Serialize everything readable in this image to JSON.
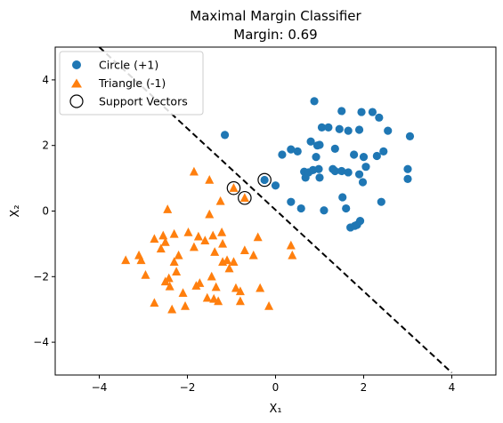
{
  "chart_data": {
    "type": "scatter",
    "title": "Maximal Margin Classifier",
    "subtitle": "Margin: 0.69",
    "xlabel": "X₁",
    "ylabel": "X₂",
    "xlim": [
      -5,
      5
    ],
    "ylim": [
      -5,
      5
    ],
    "xticks": [
      -4,
      -2,
      0,
      2,
      4
    ],
    "yticks": [
      -4,
      -2,
      0,
      2,
      4
    ],
    "grid": false,
    "legend": "top-left",
    "series": [
      {
        "name": "Circle (+1)",
        "marker": "circle",
        "color": "#1f77b4",
        "points": [
          [
            -1.15,
            2.32
          ],
          [
            -0.25,
            0.95
          ],
          [
            0.0,
            0.78
          ],
          [
            0.15,
            1.72
          ],
          [
            0.35,
            1.88
          ],
          [
            0.35,
            0.28
          ],
          [
            0.5,
            1.82
          ],
          [
            0.58,
            0.08
          ],
          [
            0.65,
            1.2
          ],
          [
            0.68,
            1.02
          ],
          [
            0.75,
            1.18
          ],
          [
            0.8,
            2.12
          ],
          [
            0.85,
            1.25
          ],
          [
            0.88,
            3.35
          ],
          [
            0.92,
            1.65
          ],
          [
            0.95,
            2.0
          ],
          [
            0.98,
            1.28
          ],
          [
            1.0,
            2.02
          ],
          [
            1.0,
            1.02
          ],
          [
            1.05,
            2.55
          ],
          [
            1.1,
            0.02
          ],
          [
            1.2,
            2.55
          ],
          [
            1.3,
            1.28
          ],
          [
            1.35,
            1.22
          ],
          [
            1.35,
            1.9
          ],
          [
            1.45,
            2.5
          ],
          [
            1.5,
            3.05
          ],
          [
            1.5,
            1.22
          ],
          [
            1.52,
            0.42
          ],
          [
            1.6,
            0.08
          ],
          [
            1.65,
            1.18
          ],
          [
            1.65,
            2.45
          ],
          [
            1.7,
            -0.5
          ],
          [
            1.78,
            1.72
          ],
          [
            1.8,
            -0.45
          ],
          [
            1.85,
            -0.42
          ],
          [
            1.9,
            2.48
          ],
          [
            1.9,
            1.12
          ],
          [
            1.92,
            -0.3
          ],
          [
            1.95,
            3.02
          ],
          [
            1.98,
            0.88
          ],
          [
            2.05,
            1.35
          ],
          [
            2.0,
            1.65
          ],
          [
            2.2,
            3.02
          ],
          [
            2.3,
            1.68
          ],
          [
            2.35,
            2.85
          ],
          [
            2.4,
            0.28
          ],
          [
            2.45,
            1.82
          ],
          [
            2.55,
            2.45
          ],
          [
            3.0,
            1.28
          ],
          [
            3.0,
            0.98
          ],
          [
            3.05,
            2.28
          ]
        ]
      },
      {
        "name": "Triangle (-1)",
        "marker": "triangle",
        "color": "#ff7f0e",
        "points": [
          [
            -3.4,
            -1.5
          ],
          [
            -3.1,
            -1.35
          ],
          [
            -3.05,
            -1.5
          ],
          [
            -2.95,
            -1.95
          ],
          [
            -2.75,
            -0.85
          ],
          [
            -2.75,
            -2.8
          ],
          [
            -2.6,
            -1.15
          ],
          [
            -2.55,
            -0.75
          ],
          [
            -2.5,
            -0.95
          ],
          [
            -2.5,
            -2.15
          ],
          [
            -2.45,
            0.05
          ],
          [
            -2.42,
            -2.05
          ],
          [
            -2.4,
            -2.3
          ],
          [
            -2.35,
            -3.0
          ],
          [
            -2.3,
            -0.7
          ],
          [
            -2.3,
            -1.55
          ],
          [
            -2.25,
            -1.85
          ],
          [
            -2.2,
            -1.35
          ],
          [
            -2.1,
            -2.5
          ],
          [
            -2.05,
            -2.9
          ],
          [
            -1.98,
            -0.65
          ],
          [
            -1.85,
            1.2
          ],
          [
            -1.85,
            -1.1
          ],
          [
            -1.8,
            -2.28
          ],
          [
            -1.75,
            -0.78
          ],
          [
            -1.72,
            -2.2
          ],
          [
            -1.6,
            -0.9
          ],
          [
            -1.55,
            -2.65
          ],
          [
            -1.5,
            0.95
          ],
          [
            -1.5,
            -0.1
          ],
          [
            -1.45,
            -2.0
          ],
          [
            -1.42,
            -0.75
          ],
          [
            -1.4,
            -2.68
          ],
          [
            -1.38,
            -1.25
          ],
          [
            -1.35,
            -2.32
          ],
          [
            -1.3,
            -2.75
          ],
          [
            -1.25,
            0.3
          ],
          [
            -1.22,
            -0.65
          ],
          [
            -1.2,
            -1.0
          ],
          [
            -1.2,
            -1.55
          ],
          [
            -1.1,
            -1.5
          ],
          [
            -1.05,
            -1.75
          ],
          [
            -0.95,
            -1.55
          ],
          [
            -0.9,
            -2.35
          ],
          [
            -0.8,
            -2.75
          ],
          [
            -0.8,
            -2.45
          ],
          [
            -0.7,
            -1.2
          ],
          [
            -0.5,
            -1.35
          ],
          [
            -0.4,
            -0.8
          ],
          [
            -0.35,
            -2.35
          ],
          [
            -0.15,
            -2.9
          ],
          [
            0.35,
            -1.05
          ],
          [
            0.38,
            -1.35
          ],
          [
            -0.95,
            0.7
          ],
          [
            -0.7,
            0.4
          ]
        ]
      }
    ],
    "support_vectors": {
      "name": "Support Vectors",
      "points": [
        [
          -0.25,
          0.95
        ],
        [
          -0.95,
          0.7
        ],
        [
          -0.7,
          0.4
        ]
      ]
    },
    "decision_boundary": {
      "style": "dashed",
      "color": "#000000",
      "points": [
        [
          -4.0,
          5.0
        ],
        [
          4.0,
          -4.93
        ]
      ]
    }
  }
}
